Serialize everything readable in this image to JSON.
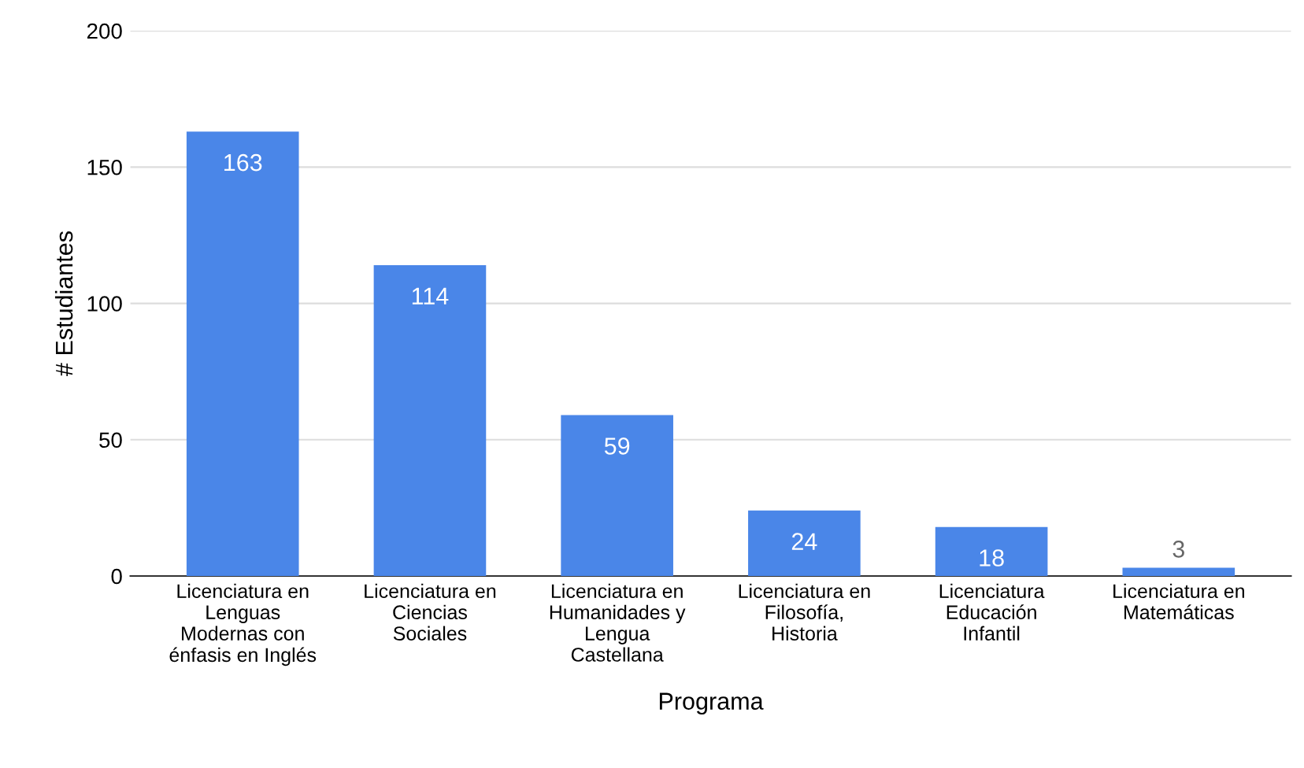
{
  "chart_data": {
    "type": "bar",
    "xlabel": "Programa",
    "ylabel": "# Estudiantes",
    "categories": [
      "Licenciatura en\nLenguas\nModernas con\nénfasis en Inglés",
      "Licenciatura en\nCiencias\nSociales",
      "Licenciatura en\nHumanidades y\nLengua\nCastellana",
      "Licenciatura en\nFilosofía,\nHistoria",
      "Licenciatura\nEducación\nInfantil",
      "Licenciatura en\nMatemáticas"
    ],
    "values": [
      163,
      114,
      59,
      24,
      18,
      3
    ],
    "color": "#4a86e8",
    "ylim": [
      0,
      200
    ],
    "yticks": [
      0,
      50,
      100,
      150,
      200
    ],
    "grid": "y",
    "data_labels": true
  }
}
